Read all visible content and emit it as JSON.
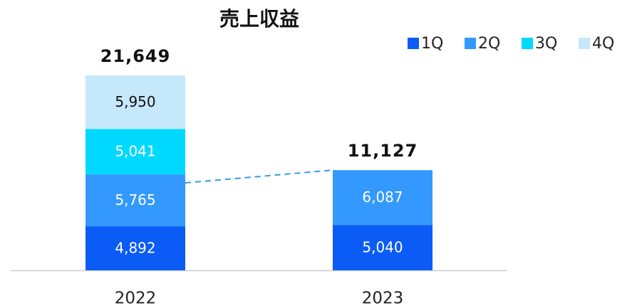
{
  "chart_data": {
    "type": "stacked_bar",
    "title": "売上収益",
    "categories": [
      "2022",
      "2023"
    ],
    "series": [
      {
        "name": "1Q",
        "color": "#0b5cf6",
        "label_color": "#ffffff",
        "values": [
          4892,
          5040
        ],
        "value_labels": [
          "4,892",
          "5,040"
        ]
      },
      {
        "name": "2Q",
        "color": "#3399ff",
        "label_color": "#ffffff",
        "values": [
          5765,
          6087
        ],
        "value_labels": [
          "5,765",
          "6,087"
        ]
      },
      {
        "name": "3Q",
        "color": "#00d9ff",
        "label_color": "#ffffff",
        "values": [
          5041,
          null
        ],
        "value_labels": [
          "5,041",
          null
        ]
      },
      {
        "name": "4Q",
        "color": "#c5e8fb",
        "label_color": "#111111",
        "values": [
          5950,
          null
        ],
        "value_labels": [
          "5,950",
          null
        ]
      }
    ],
    "totals": [
      21649,
      11127
    ],
    "total_labels": [
      "21,649",
      "11,127"
    ]
  }
}
